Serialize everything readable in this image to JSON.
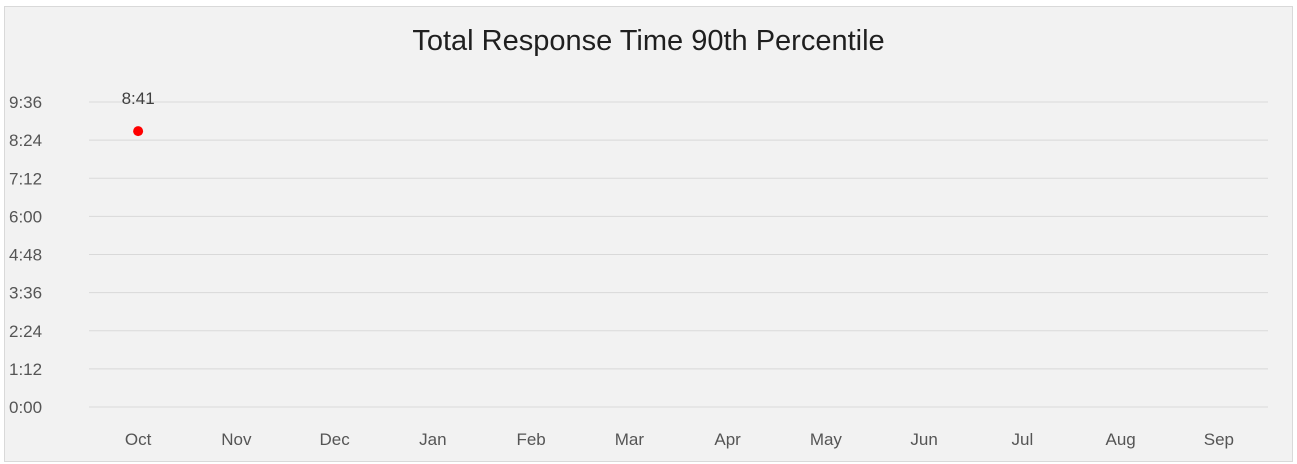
{
  "chart_data": {
    "type": "scatter",
    "title": "Total Response Time 90th Percentile",
    "xlabel": "",
    "ylabel": "",
    "categories": [
      "Oct",
      "Nov",
      "Dec",
      "Jan",
      "Feb",
      "Mar",
      "Apr",
      "May",
      "Jun",
      "Jul",
      "Aug",
      "Sep"
    ],
    "y_ticks": [
      "0:00",
      "1:12",
      "2:24",
      "3:36",
      "4:48",
      "6:00",
      "7:12",
      "8:24",
      "9:36"
    ],
    "ylim_minutes": [
      0,
      9.6
    ],
    "series": [
      {
        "values": [
          "8:41",
          null,
          null,
          null,
          null,
          null,
          null,
          null,
          null,
          null,
          null,
          null
        ],
        "values_minutes": [
          8.683,
          null,
          null,
          null,
          null,
          null,
          null,
          null,
          null,
          null,
          null,
          null
        ],
        "data_labels": [
          "8:41",
          null,
          null,
          null,
          null,
          null,
          null,
          null,
          null,
          null,
          null,
          null
        ],
        "color": "#ff0000"
      }
    ],
    "grid": true,
    "legend": "none"
  },
  "colors": {
    "background": "#f2f2f2",
    "gridline": "#d9d9d9",
    "marker": "#ff0000"
  }
}
